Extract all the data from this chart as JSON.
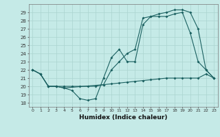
{
  "xlabel": "Humidex (Indice chaleur)",
  "bg_color": "#c5eae7",
  "grid_color": "#aad4d0",
  "line_color": "#1a6060",
  "xlim": [
    -0.5,
    23.5
  ],
  "ylim": [
    17.5,
    30.0
  ],
  "yticks": [
    18,
    19,
    20,
    21,
    22,
    23,
    24,
    25,
    26,
    27,
    28,
    29
  ],
  "xticks": [
    0,
    1,
    2,
    3,
    4,
    5,
    6,
    7,
    8,
    9,
    10,
    11,
    12,
    13,
    14,
    15,
    16,
    17,
    18,
    19,
    20,
    21,
    22,
    23
  ],
  "line1_x": [
    0,
    1,
    2,
    3,
    4,
    5,
    6,
    7,
    8,
    9,
    10,
    11,
    12,
    13,
    14,
    15,
    16,
    17,
    18,
    19,
    20,
    21,
    22,
    23
  ],
  "line1_y": [
    22.0,
    21.5,
    20.0,
    20.0,
    20.0,
    20.0,
    20.0,
    20.0,
    20.0,
    20.2,
    20.3,
    20.4,
    20.5,
    20.6,
    20.7,
    20.8,
    20.9,
    21.0,
    21.0,
    21.0,
    21.0,
    21.0,
    21.5,
    21.0
  ],
  "line2_x": [
    0,
    1,
    2,
    3,
    4,
    5,
    6,
    7,
    8,
    9,
    10,
    11,
    12,
    13,
    14,
    15,
    16,
    17,
    18,
    19,
    20,
    21,
    22,
    23
  ],
  "line2_y": [
    22.0,
    21.5,
    20.0,
    20.0,
    19.8,
    19.5,
    18.5,
    18.3,
    18.5,
    21.0,
    23.5,
    24.5,
    23.0,
    23.0,
    27.5,
    28.5,
    28.5,
    28.5,
    28.8,
    29.0,
    26.5,
    23.0,
    22.0,
    21.0
  ],
  "line3_x": [
    0,
    1,
    2,
    3,
    4,
    9,
    10,
    11,
    12,
    13,
    14,
    15,
    16,
    17,
    18,
    19,
    20,
    21,
    22,
    23
  ],
  "line3_y": [
    22.0,
    21.5,
    20.0,
    20.0,
    19.8,
    20.2,
    22.0,
    23.0,
    24.0,
    24.5,
    28.3,
    28.5,
    28.8,
    29.0,
    29.3,
    29.3,
    29.0,
    27.0,
    22.0,
    21.0
  ]
}
